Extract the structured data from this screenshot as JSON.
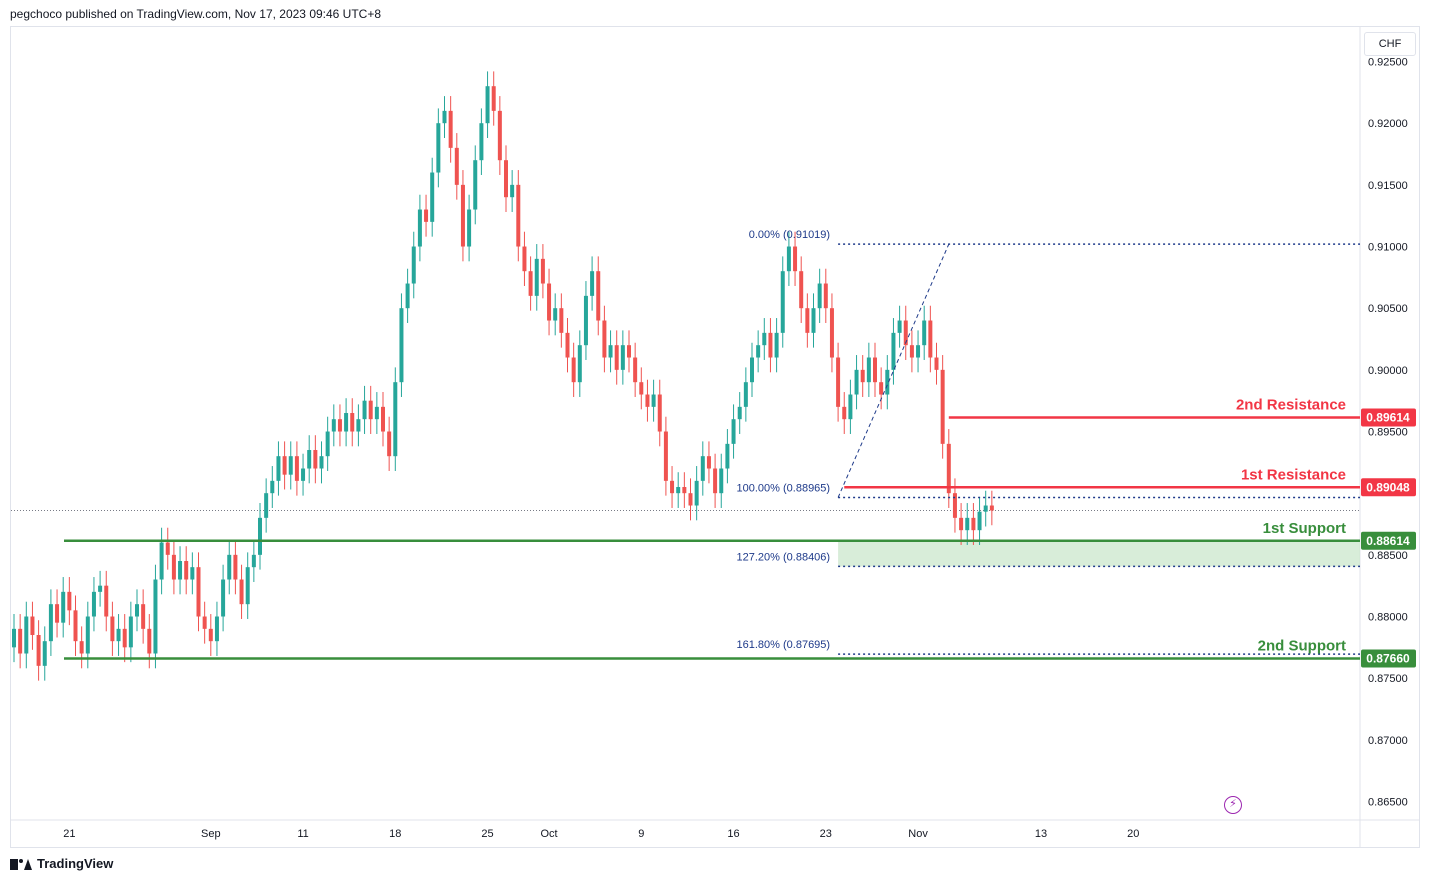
{
  "header": {
    "text": "pegchoco published on TradingView.com, Nov 17, 2023 09:46 UTC+8"
  },
  "footer": {
    "brand": "TradingView",
    "logo_icon": "tradingview-logo-icon"
  },
  "currency_button": {
    "label": "CHF"
  },
  "indicator_icon": "lightning-icon",
  "colors": {
    "up": "#26a69a",
    "down": "#ef5350",
    "resistance": "#f23645",
    "support": "#388e3c",
    "fib": "#1e3a8a",
    "zone": "#c8e6c9",
    "axis_text": "#131722"
  },
  "chart_data": {
    "type": "candlestick",
    "y_axis": {
      "range": [
        0.8635,
        0.9278
      ],
      "ticks": [
        "0.92500",
        "0.92000",
        "0.91500",
        "0.91000",
        "0.90500",
        "0.90000",
        "0.89500",
        "0.88500",
        "0.88000",
        "0.87500",
        "0.87000",
        "0.86500"
      ],
      "tick_values": [
        0.925,
        0.92,
        0.915,
        0.91,
        0.905,
        0.9,
        0.895,
        0.885,
        0.88,
        0.875,
        0.87,
        0.865
      ]
    },
    "x_axis": {
      "labels": [
        "21",
        "Sep",
        "11",
        "18",
        "25",
        "Oct",
        "9",
        "16",
        "23",
        "Nov",
        "13",
        "20"
      ],
      "label_bar_index": [
        9,
        32,
        47,
        62,
        77,
        87,
        102,
        117,
        132,
        147,
        167,
        182
      ]
    },
    "last_price": 0.8886,
    "candles": [
      [
        0.8775,
        0.879
      ],
      [
        0.879,
        0.877
      ],
      [
        0.877,
        0.88
      ],
      [
        0.88,
        0.8785
      ],
      [
        0.8785,
        0.876
      ],
      [
        0.876,
        0.878
      ],
      [
        0.878,
        0.881
      ],
      [
        0.881,
        0.8795
      ],
      [
        0.8795,
        0.882
      ],
      [
        0.882,
        0.8805
      ],
      [
        0.8805,
        0.878
      ],
      [
        0.878,
        0.877
      ],
      [
        0.877,
        0.88
      ],
      [
        0.88,
        0.882
      ],
      [
        0.882,
        0.8825
      ],
      [
        0.8825,
        0.88
      ],
      [
        0.88,
        0.878
      ],
      [
        0.878,
        0.879
      ],
      [
        0.879,
        0.8775
      ],
      [
        0.8775,
        0.88
      ],
      [
        0.88,
        0.881
      ],
      [
        0.881,
        0.879
      ],
      [
        0.879,
        0.877
      ],
      [
        0.877,
        0.883
      ],
      [
        0.883,
        0.886
      ],
      [
        0.886,
        0.885
      ],
      [
        0.885,
        0.883
      ],
      [
        0.883,
        0.8845
      ],
      [
        0.8845,
        0.883
      ],
      [
        0.883,
        0.884
      ],
      [
        0.884,
        0.88
      ],
      [
        0.88,
        0.879
      ],
      [
        0.879,
        0.878
      ],
      [
        0.878,
        0.88
      ],
      [
        0.88,
        0.883
      ],
      [
        0.883,
        0.885
      ],
      [
        0.885,
        0.883
      ],
      [
        0.883,
        0.881
      ],
      [
        0.881,
        0.884
      ],
      [
        0.884,
        0.885
      ],
      [
        0.885,
        0.888
      ],
      [
        0.888,
        0.89
      ],
      [
        0.89,
        0.891
      ],
      [
        0.891,
        0.893
      ],
      [
        0.893,
        0.8915
      ],
      [
        0.8915,
        0.893
      ],
      [
        0.893,
        0.891
      ],
      [
        0.891,
        0.892
      ],
      [
        0.892,
        0.8935
      ],
      [
        0.8935,
        0.892
      ],
      [
        0.892,
        0.893
      ],
      [
        0.893,
        0.895
      ],
      [
        0.895,
        0.896
      ],
      [
        0.896,
        0.895
      ],
      [
        0.895,
        0.8965
      ],
      [
        0.8965,
        0.895
      ],
      [
        0.895,
        0.896
      ],
      [
        0.896,
        0.8975
      ],
      [
        0.8975,
        0.896
      ],
      [
        0.896,
        0.897
      ],
      [
        0.897,
        0.895
      ],
      [
        0.895,
        0.893
      ],
      [
        0.893,
        0.899
      ],
      [
        0.899,
        0.905
      ],
      [
        0.905,
        0.907
      ],
      [
        0.907,
        0.91
      ],
      [
        0.91,
        0.913
      ],
      [
        0.913,
        0.912
      ],
      [
        0.912,
        0.916
      ],
      [
        0.916,
        0.92
      ],
      [
        0.92,
        0.921
      ],
      [
        0.921,
        0.918
      ],
      [
        0.918,
        0.915
      ],
      [
        0.915,
        0.91
      ],
      [
        0.91,
        0.913
      ],
      [
        0.913,
        0.917
      ],
      [
        0.917,
        0.92
      ],
      [
        0.92,
        0.923
      ],
      [
        0.923,
        0.921
      ],
      [
        0.921,
        0.917
      ],
      [
        0.917,
        0.914
      ],
      [
        0.914,
        0.915
      ],
      [
        0.915,
        0.91
      ],
      [
        0.91,
        0.908
      ],
      [
        0.908,
        0.906
      ],
      [
        0.906,
        0.909
      ],
      [
        0.909,
        0.907
      ],
      [
        0.907,
        0.904
      ],
      [
        0.904,
        0.905
      ],
      [
        0.905,
        0.903
      ],
      [
        0.903,
        0.901
      ],
      [
        0.901,
        0.899
      ],
      [
        0.899,
        0.902
      ],
      [
        0.902,
        0.906
      ],
      [
        0.906,
        0.908
      ],
      [
        0.908,
        0.904
      ],
      [
        0.904,
        0.901
      ],
      [
        0.901,
        0.902
      ],
      [
        0.902,
        0.9
      ],
      [
        0.9,
        0.902
      ],
      [
        0.902,
        0.901
      ],
      [
        0.901,
        0.899
      ],
      [
        0.899,
        0.898
      ],
      [
        0.898,
        0.897
      ],
      [
        0.897,
        0.898
      ],
      [
        0.898,
        0.895
      ],
      [
        0.895,
        0.891
      ],
      [
        0.891,
        0.89
      ],
      [
        0.89,
        0.8905
      ],
      [
        0.8905,
        0.89
      ],
      [
        0.89,
        0.889
      ],
      [
        0.889,
        0.891
      ],
      [
        0.891,
        0.893
      ],
      [
        0.893,
        0.892
      ],
      [
        0.892,
        0.89
      ],
      [
        0.89,
        0.892
      ],
      [
        0.892,
        0.894
      ],
      [
        0.894,
        0.896
      ],
      [
        0.896,
        0.897
      ],
      [
        0.897,
        0.899
      ],
      [
        0.899,
        0.901
      ],
      [
        0.901,
        0.902
      ],
      [
        0.902,
        0.903
      ],
      [
        0.903,
        0.901
      ],
      [
        0.901,
        0.903
      ],
      [
        0.903,
        0.908
      ],
      [
        0.908,
        0.91
      ],
      [
        0.91,
        0.908
      ],
      [
        0.908,
        0.905
      ],
      [
        0.905,
        0.903
      ],
      [
        0.903,
        0.905
      ],
      [
        0.905,
        0.907
      ],
      [
        0.907,
        0.905
      ],
      [
        0.905,
        0.901
      ],
      [
        0.901,
        0.897
      ],
      [
        0.897,
        0.896
      ],
      [
        0.896,
        0.898
      ],
      [
        0.898,
        0.9
      ],
      [
        0.9,
        0.899
      ],
      [
        0.899,
        0.901
      ],
      [
        0.901,
        0.899
      ],
      [
        0.899,
        0.898
      ],
      [
        0.898,
        0.9
      ],
      [
        0.9,
        0.903
      ],
      [
        0.903,
        0.904
      ],
      [
        0.904,
        0.902
      ],
      [
        0.902,
        0.901
      ],
      [
        0.901,
        0.902
      ],
      [
        0.902,
        0.904
      ],
      [
        0.904,
        0.901
      ],
      [
        0.901,
        0.9
      ],
      [
        0.9,
        0.894
      ],
      [
        0.894,
        0.89
      ],
      [
        0.89,
        0.888
      ],
      [
        0.888,
        0.887
      ],
      [
        0.887,
        0.888
      ],
      [
        0.888,
        0.887
      ],
      [
        0.887,
        0.8885
      ],
      [
        0.8885,
        0.889
      ],
      [
        0.889,
        0.8886
      ]
    ],
    "annotations": {
      "levels": [
        {
          "label": "2nd Resistance",
          "value": 0.89614,
          "price_label": "0.89614",
          "kind": "resistance",
          "start_bar": 152
        },
        {
          "label": "1st Resistance",
          "value": 0.89048,
          "price_label": "0.89048",
          "kind": "resistance",
          "start_bar": 135
        },
        {
          "label": "1st Support",
          "value": 0.88614,
          "price_label": "0.88614",
          "kind": "support",
          "start_bar": 0
        },
        {
          "label": "2nd Support",
          "value": 0.8766,
          "price_label": "0.87660",
          "kind": "support",
          "start_bar": 0
        }
      ],
      "fib_levels": [
        {
          "label": "0.00% (0.91019)",
          "value": 0.91019
        },
        {
          "label": "100.00% (0.88965)",
          "value": 0.88965
        },
        {
          "label": "127.20% (0.88406)",
          "value": 0.88406
        },
        {
          "label": "161.80% (0.87695)",
          "value": 0.87695
        }
      ],
      "fib_start_bar": 134,
      "zone": {
        "from": 0.88406,
        "to": 0.88614
      }
    }
  }
}
